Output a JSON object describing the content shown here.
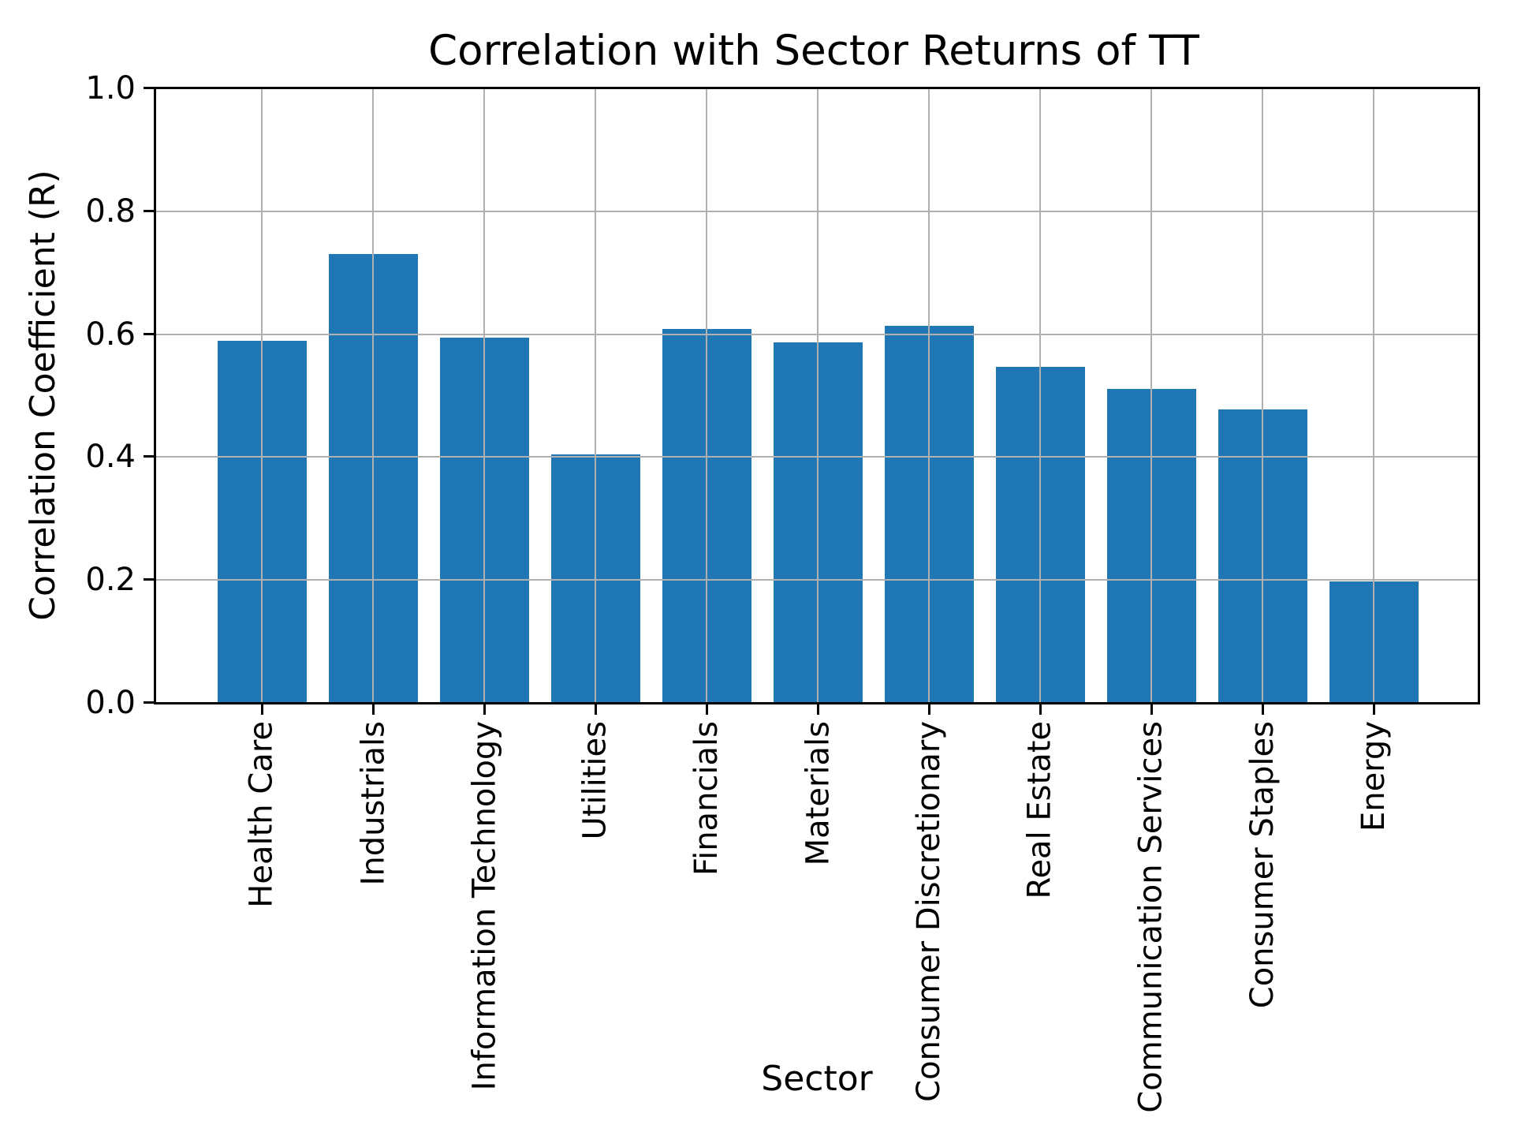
{
  "chart_data": {
    "type": "bar",
    "title": "Correlation with Sector Returns of TT",
    "xlabel": "Sector",
    "ylabel": "Correlation Coefficient (R)",
    "categories": [
      "Health Care",
      "Industrials",
      "Information Technology",
      "Utilities",
      "Financials",
      "Materials",
      "Consumer Discretionary",
      "Real Estate",
      "Communication Services",
      "Consumer Staples",
      "Energy"
    ],
    "values": [
      0.589,
      0.731,
      0.594,
      0.404,
      0.608,
      0.587,
      0.613,
      0.547,
      0.511,
      0.477,
      0.198
    ],
    "ylim": [
      0.0,
      1.0
    ],
    "ytick_labels": [
      "0.0",
      "0.2",
      "0.4",
      "0.6",
      "0.8",
      "1.0"
    ],
    "ytick_values": [
      0.0,
      0.2,
      0.4,
      0.6,
      0.8,
      1.0
    ],
    "grid": true,
    "grid_over_bars": true,
    "legend": "none",
    "colors": {
      "bar": "#1f77b4",
      "grid": "#b0b0b0",
      "spine": "#000000",
      "text": "#000000",
      "background": "#ffffff"
    }
  }
}
